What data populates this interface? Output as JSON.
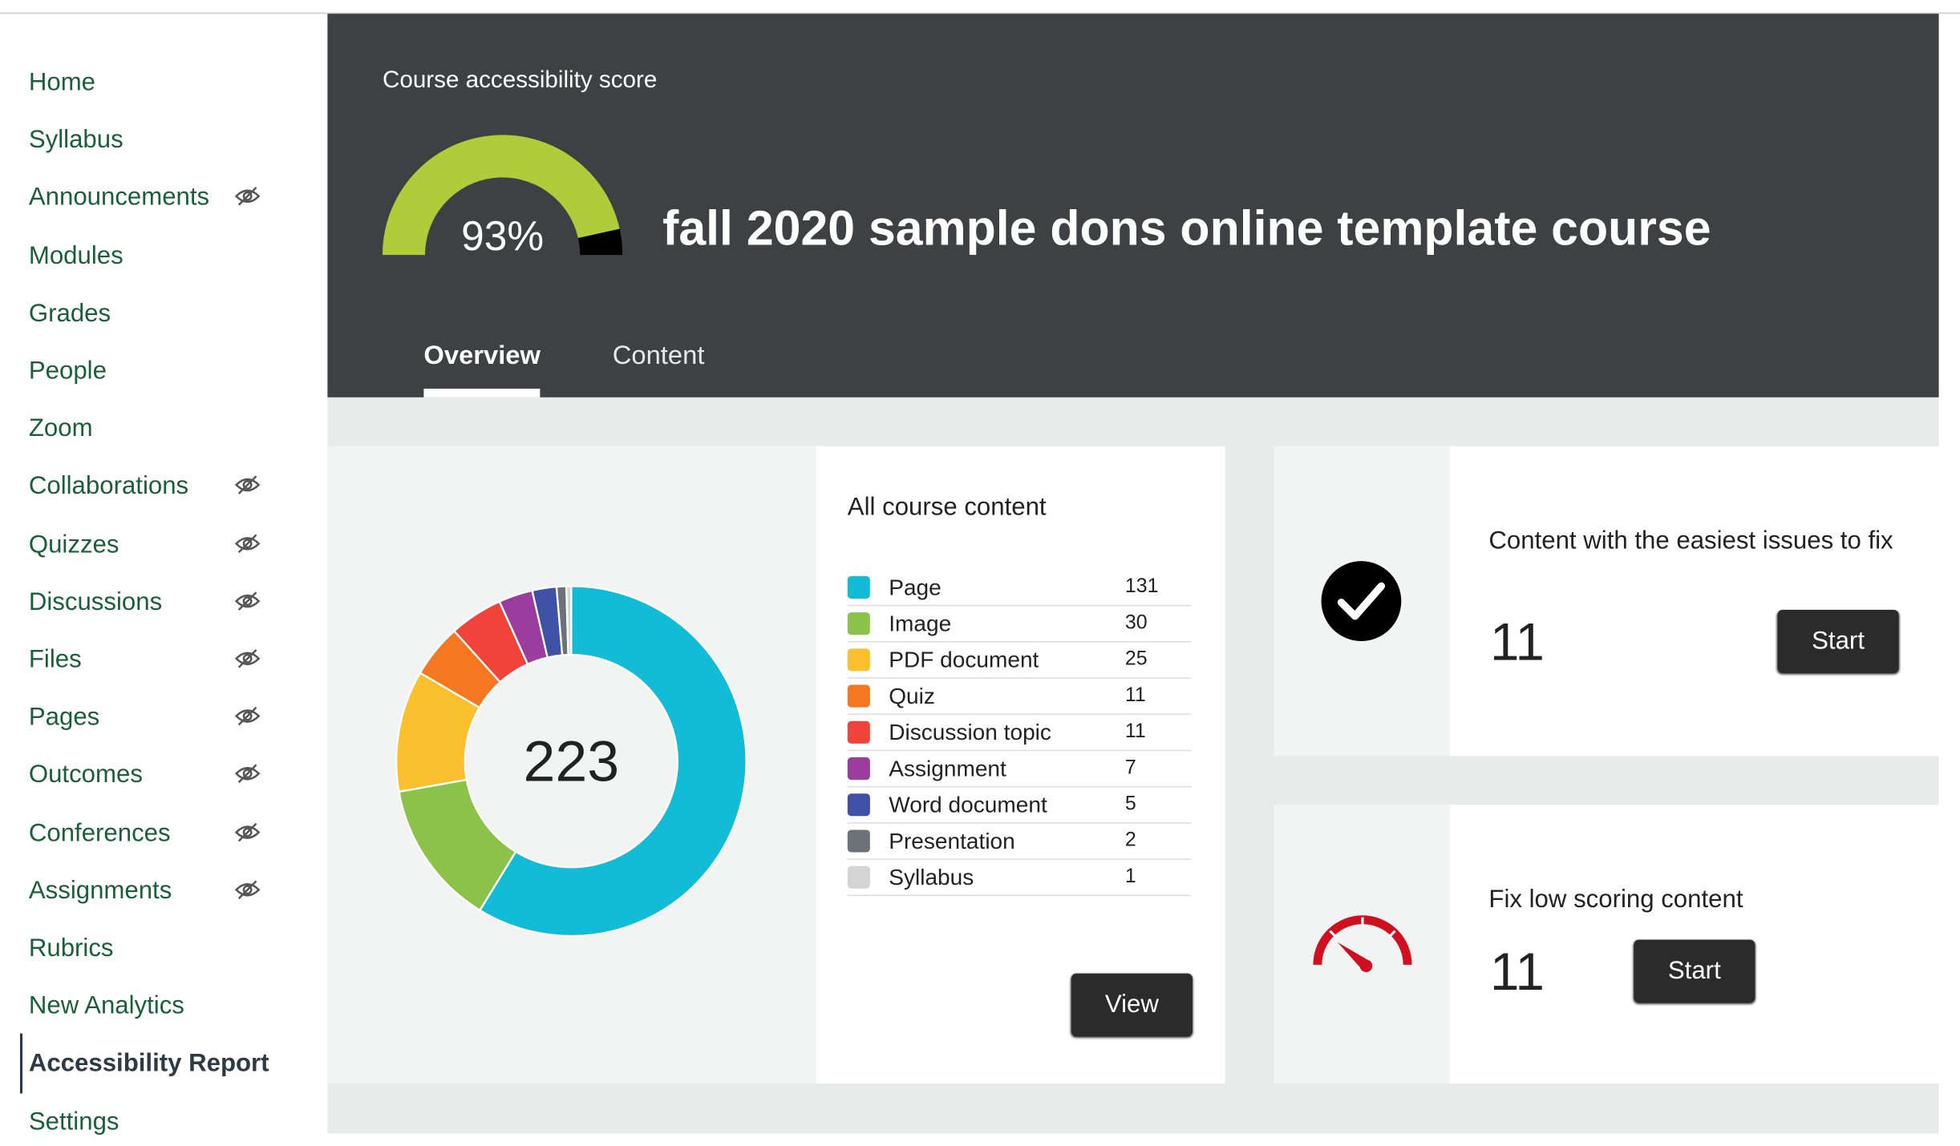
{
  "nav": [
    {
      "label": "Home"
    },
    {
      "label": "Syllabus"
    },
    {
      "label": "Announcements",
      "hidden": true
    },
    {
      "label": "Modules"
    },
    {
      "label": "Grades"
    },
    {
      "label": "People"
    },
    {
      "label": "Zoom"
    },
    {
      "label": "Collaborations",
      "hidden": true
    },
    {
      "label": "Quizzes",
      "hidden": true
    },
    {
      "label": "Discussions",
      "hidden": true
    },
    {
      "label": "Files",
      "hidden": true
    },
    {
      "label": "Pages",
      "hidden": true
    },
    {
      "label": "Outcomes",
      "hidden": true
    },
    {
      "label": "Conferences",
      "hidden": true
    },
    {
      "label": "Assignments",
      "hidden": true
    },
    {
      "label": "Rubrics"
    },
    {
      "label": "New Analytics"
    },
    {
      "label": "Accessibility Report",
      "active": true
    },
    {
      "label": "Settings"
    }
  ],
  "header": {
    "score_title": "Course accessibility score",
    "score": {
      "value": 93,
      "label": "93%",
      "lim": [
        0,
        100
      ],
      "color": "#b1cb3a"
    },
    "course_name": "fall 2020 sample dons online template course",
    "tabs": [
      {
        "label": "Overview",
        "active": true
      },
      {
        "label": "Content"
      }
    ]
  },
  "content": {
    "title": "All course content",
    "total": 223,
    "items": [
      {
        "label": "Page",
        "count": 131,
        "color": "#12bcd6"
      },
      {
        "label": "Image",
        "count": 30,
        "color": "#8bc34a"
      },
      {
        "label": "PDF document",
        "count": 25,
        "color": "#fbc02d"
      },
      {
        "label": "Quiz",
        "count": 11,
        "color": "#f57722"
      },
      {
        "label": "Discussion topic",
        "count": 11,
        "color": "#f0443a"
      },
      {
        "label": "Assignment",
        "count": 7,
        "color": "#9a3d9e"
      },
      {
        "label": "Word document",
        "count": 5,
        "color": "#3f51a5"
      },
      {
        "label": "Presentation",
        "count": 2,
        "color": "#6c7378"
      },
      {
        "label": "Syllabus",
        "count": 1,
        "color": "#d4d4d4"
      }
    ],
    "button": "View"
  },
  "cards": [
    {
      "title": "Content with the easiest issues to fix",
      "count": 11,
      "button": "Start"
    },
    {
      "title": "Fix low scoring content",
      "count": 11,
      "button": "Start"
    }
  ]
}
